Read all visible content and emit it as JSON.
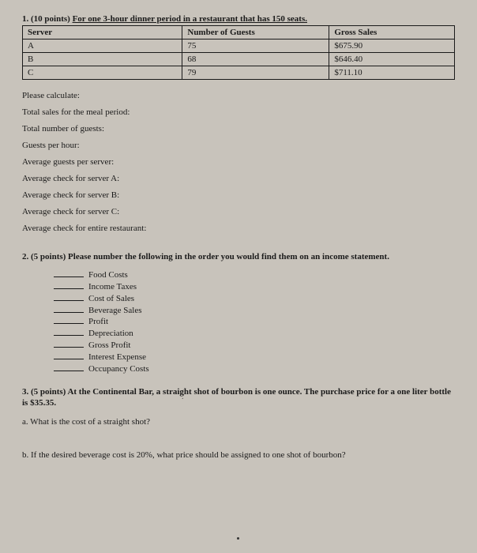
{
  "q1": {
    "header_prefix": "1. (10 points) ",
    "header_text": "For one 3-hour dinner period in a restaurant that has 150 seats.",
    "table": {
      "headers": [
        "Server",
        "Number of Guests",
        "Gross Sales"
      ],
      "rows": [
        [
          "A",
          "75",
          "$675.90"
        ],
        [
          "B",
          "68",
          "$646.40"
        ],
        [
          "C",
          "79",
          "$711.10"
        ]
      ]
    },
    "lines": [
      "Please calculate:",
      "Total sales for the meal period:",
      "Total number of guests:",
      "Guests per hour:",
      "Average guests per server:",
      "Average check for server A:",
      "Average check for server B:",
      "Average check for server C:",
      "Average check for entire restaurant:"
    ]
  },
  "q2": {
    "header": "2. (5 points) Please number the following in the order you would find them on an income statement.",
    "items": [
      "Food Costs",
      "Income Taxes",
      "Cost of Sales",
      "Beverage Sales",
      "Profit",
      "Depreciation",
      "Gross Profit",
      "Interest Expense",
      "Occupancy Costs"
    ]
  },
  "q3": {
    "header": "3. (5 points) At the Continental Bar, a straight shot of bourbon is one ounce. The purchase price for a one liter bottle is $35.35.",
    "a": "a. What is the cost of a straight shot?",
    "b": "b. If the desired beverage cost is 20%, what price should be assigned to one shot of bourbon?"
  }
}
